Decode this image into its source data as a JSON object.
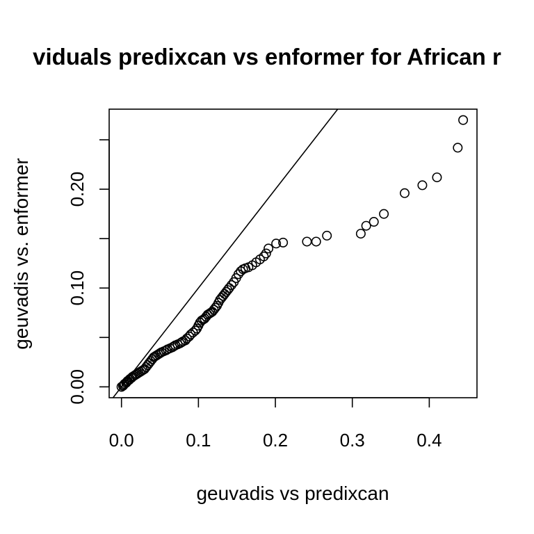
{
  "chart_data": {
    "type": "scatter",
    "title": "viduals predixcan vs enformer for African r",
    "xlabel": "geuvadis vs predixcan",
    "ylabel": "geuvadis vs. enformer",
    "xlim": [
      -0.016,
      0.462
    ],
    "ylim": [
      -0.011,
      0.281
    ],
    "x_ticks": [
      0.0,
      0.1,
      0.2,
      0.3,
      0.4
    ],
    "x_tick_labels": [
      "0.0",
      "0.1",
      "0.2",
      "0.3",
      "0.4"
    ],
    "y_ticks": [
      0.0,
      0.05,
      0.1,
      0.15,
      0.2,
      0.25
    ],
    "y_tick_labels": [
      "0.00",
      "",
      "0.10",
      "",
      "0.20",
      ""
    ],
    "reference_line": {
      "slope": 1,
      "intercept": 0
    },
    "grid": false,
    "legend": "none",
    "points": [
      [
        0.0,
        0.0
      ],
      [
        0.002,
        0.001
      ],
      [
        0.003,
        0.002
      ],
      [
        0.004,
        0.003
      ],
      [
        0.006,
        0.004
      ],
      [
        0.007,
        0.005
      ],
      [
        0.008,
        0.006
      ],
      [
        0.01,
        0.007
      ],
      [
        0.011,
        0.008
      ],
      [
        0.013,
        0.009
      ],
      [
        0.014,
        0.01
      ],
      [
        0.016,
        0.011
      ],
      [
        0.018,
        0.012
      ],
      [
        0.02,
        0.013
      ],
      [
        0.022,
        0.014
      ],
      [
        0.024,
        0.015
      ],
      [
        0.026,
        0.016
      ],
      [
        0.028,
        0.017
      ],
      [
        0.03,
        0.018
      ],
      [
        0.032,
        0.02
      ],
      [
        0.034,
        0.022
      ],
      [
        0.036,
        0.024
      ],
      [
        0.038,
        0.026
      ],
      [
        0.04,
        0.028
      ],
      [
        0.042,
        0.03
      ],
      [
        0.044,
        0.031
      ],
      [
        0.046,
        0.032
      ],
      [
        0.048,
        0.033
      ],
      [
        0.05,
        0.034
      ],
      [
        0.052,
        0.035
      ],
      [
        0.055,
        0.036
      ],
      [
        0.058,
        0.037
      ],
      [
        0.06,
        0.038
      ],
      [
        0.063,
        0.039
      ],
      [
        0.066,
        0.04
      ],
      [
        0.068,
        0.041
      ],
      [
        0.07,
        0.042
      ],
      [
        0.073,
        0.043
      ],
      [
        0.076,
        0.044
      ],
      [
        0.078,
        0.045
      ],
      [
        0.08,
        0.046
      ],
      [
        0.083,
        0.047
      ],
      [
        0.085,
        0.049
      ],
      [
        0.088,
        0.051
      ],
      [
        0.09,
        0.053
      ],
      [
        0.093,
        0.055
      ],
      [
        0.096,
        0.057
      ],
      [
        0.098,
        0.059
      ],
      [
        0.1,
        0.062
      ],
      [
        0.102,
        0.065
      ],
      [
        0.104,
        0.067
      ],
      [
        0.106,
        0.068
      ],
      [
        0.108,
        0.069
      ],
      [
        0.11,
        0.071
      ],
      [
        0.112,
        0.073
      ],
      [
        0.114,
        0.074
      ],
      [
        0.116,
        0.075
      ],
      [
        0.118,
        0.076
      ],
      [
        0.12,
        0.078
      ],
      [
        0.122,
        0.08
      ],
      [
        0.124,
        0.082
      ],
      [
        0.126,
        0.085
      ],
      [
        0.128,
        0.088
      ],
      [
        0.13,
        0.09
      ],
      [
        0.132,
        0.092
      ],
      [
        0.134,
        0.094
      ],
      [
        0.136,
        0.096
      ],
      [
        0.138,
        0.098
      ],
      [
        0.14,
        0.1
      ],
      [
        0.143,
        0.103
      ],
      [
        0.146,
        0.106
      ],
      [
        0.149,
        0.11
      ],
      [
        0.152,
        0.114
      ],
      [
        0.155,
        0.117
      ],
      [
        0.158,
        0.119
      ],
      [
        0.161,
        0.12
      ],
      [
        0.165,
        0.121
      ],
      [
        0.17,
        0.123
      ],
      [
        0.175,
        0.126
      ],
      [
        0.18,
        0.129
      ],
      [
        0.185,
        0.132
      ],
      [
        0.188,
        0.135
      ],
      [
        0.191,
        0.14
      ],
      [
        0.201,
        0.145
      ],
      [
        0.21,
        0.146
      ],
      [
        0.241,
        0.147
      ],
      [
        0.253,
        0.147
      ],
      [
        0.267,
        0.153
      ],
      [
        0.311,
        0.155
      ],
      [
        0.318,
        0.163
      ],
      [
        0.328,
        0.167
      ],
      [
        0.341,
        0.175
      ],
      [
        0.368,
        0.196
      ],
      [
        0.391,
        0.204
      ],
      [
        0.41,
        0.212
      ],
      [
        0.437,
        0.242
      ],
      [
        0.444,
        0.27
      ]
    ]
  }
}
